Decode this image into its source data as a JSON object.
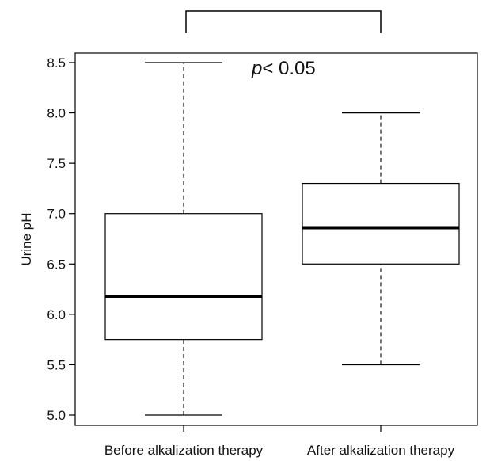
{
  "chart_data": {
    "type": "box",
    "ylabel": "Urine pH",
    "xlabel": "",
    "ylim": [
      5.0,
      8.5
    ],
    "yticks": [
      5.0,
      5.5,
      6.0,
      6.5,
      7.0,
      7.5,
      8.0,
      8.5
    ],
    "ytick_labels": [
      "5.0",
      "5.5",
      "6.0",
      "6.5",
      "7.0",
      "7.5",
      "8.0",
      "8.5"
    ],
    "categories": [
      "Before alkalization therapy",
      "After alkalization therapy"
    ],
    "boxes": [
      {
        "category": "Before alkalization therapy",
        "min": 5.0,
        "q1": 5.75,
        "median": 6.18,
        "q3": 7.0,
        "max": 8.5
      },
      {
        "category": "After alkalization therapy",
        "min": 5.5,
        "q1": 6.5,
        "median": 6.86,
        "q3": 7.3,
        "max": 8.0
      }
    ],
    "annotation": {
      "italic": "p",
      "rest": "< 0.05"
    },
    "grid": false,
    "colors": {
      "box_fill": "#ffffff",
      "box_stroke": "#000000",
      "median": "#000000"
    }
  }
}
